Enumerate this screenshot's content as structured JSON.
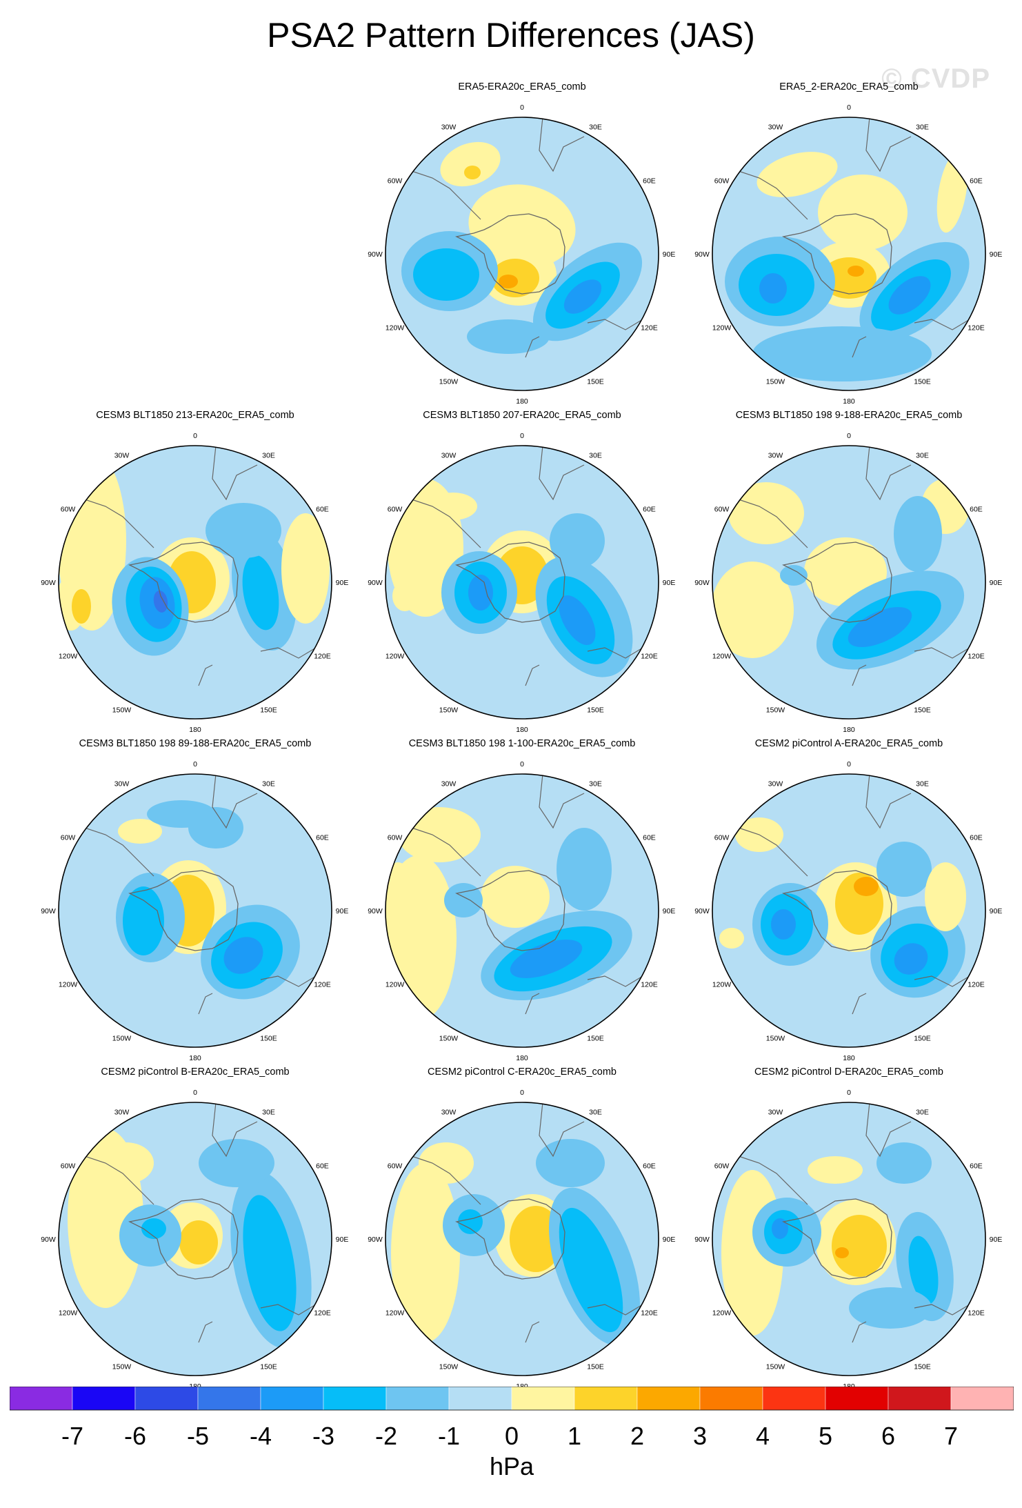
{
  "page": {
    "title": "PSA2 Pattern Differences (JAS)",
    "watermark": "© CVDP"
  },
  "chart_data": {
    "type": "polar-contour-map",
    "title": "PSA2 Pattern Differences (JAS)",
    "units": "hPa",
    "projection": "south-polar stereographic",
    "longitude_labels": [
      "0",
      "30E",
      "60E",
      "90E",
      "120E",
      "150E",
      "180",
      "150W",
      "120W",
      "90W",
      "60W",
      "30W"
    ],
    "colorbar": {
      "levels": [
        -7,
        -6,
        -5,
        -4,
        -3,
        -2,
        -1,
        0,
        1,
        2,
        3,
        4,
        5,
        6,
        7
      ],
      "colors": [
        "#8a2be2",
        "#1a06f5",
        "#2d4ae6",
        "#3476ea",
        "#1c9bf7",
        "#06bdf8",
        "#6ec5f1",
        "#b5def4",
        "#fff5a0",
        "#fdd32a",
        "#fca800",
        "#fb7b00",
        "#fc3412",
        "#e20101",
        "#d0171c",
        "#ffb3b3"
      ]
    },
    "panels": [
      {
        "id": "p1",
        "title": "ERA5-ERA20c_ERA5_comb",
        "row": 0,
        "col": 1
      },
      {
        "id": "p2",
        "title": "ERA5_2-ERA20c_ERA5_comb",
        "row": 0,
        "col": 2
      },
      {
        "id": "p3",
        "title": "CESM3 BLT1850 213-ERA20c_ERA5_comb",
        "row": 1,
        "col": 0
      },
      {
        "id": "p4",
        "title": "CESM3 BLT1850 207-ERA20c_ERA5_comb",
        "row": 1,
        "col": 1
      },
      {
        "id": "p5",
        "title": "CESM3 BLT1850 198 9-188-ERA20c_ERA5_comb",
        "row": 1,
        "col": 2
      },
      {
        "id": "p6",
        "title": "CESM3 BLT1850 198 89-188-ERA20c_ERA5_comb",
        "row": 2,
        "col": 0
      },
      {
        "id": "p7",
        "title": "CESM3 BLT1850 198 1-100-ERA20c_ERA5_comb",
        "row": 2,
        "col": 1
      },
      {
        "id": "p8",
        "title": "CESM2 piControl A-ERA20c_ERA5_comb",
        "row": 2,
        "col": 2
      },
      {
        "id": "p9",
        "title": "CESM2 piControl B-ERA20c_ERA5_comb",
        "row": 3,
        "col": 0
      },
      {
        "id": "p10",
        "title": "CESM2 piControl C-ERA20c_ERA5_comb",
        "row": 3,
        "col": 1
      },
      {
        "id": "p11",
        "title": "CESM2 piControl D-ERA20c_ERA5_comb",
        "row": 3,
        "col": 2
      }
    ]
  }
}
